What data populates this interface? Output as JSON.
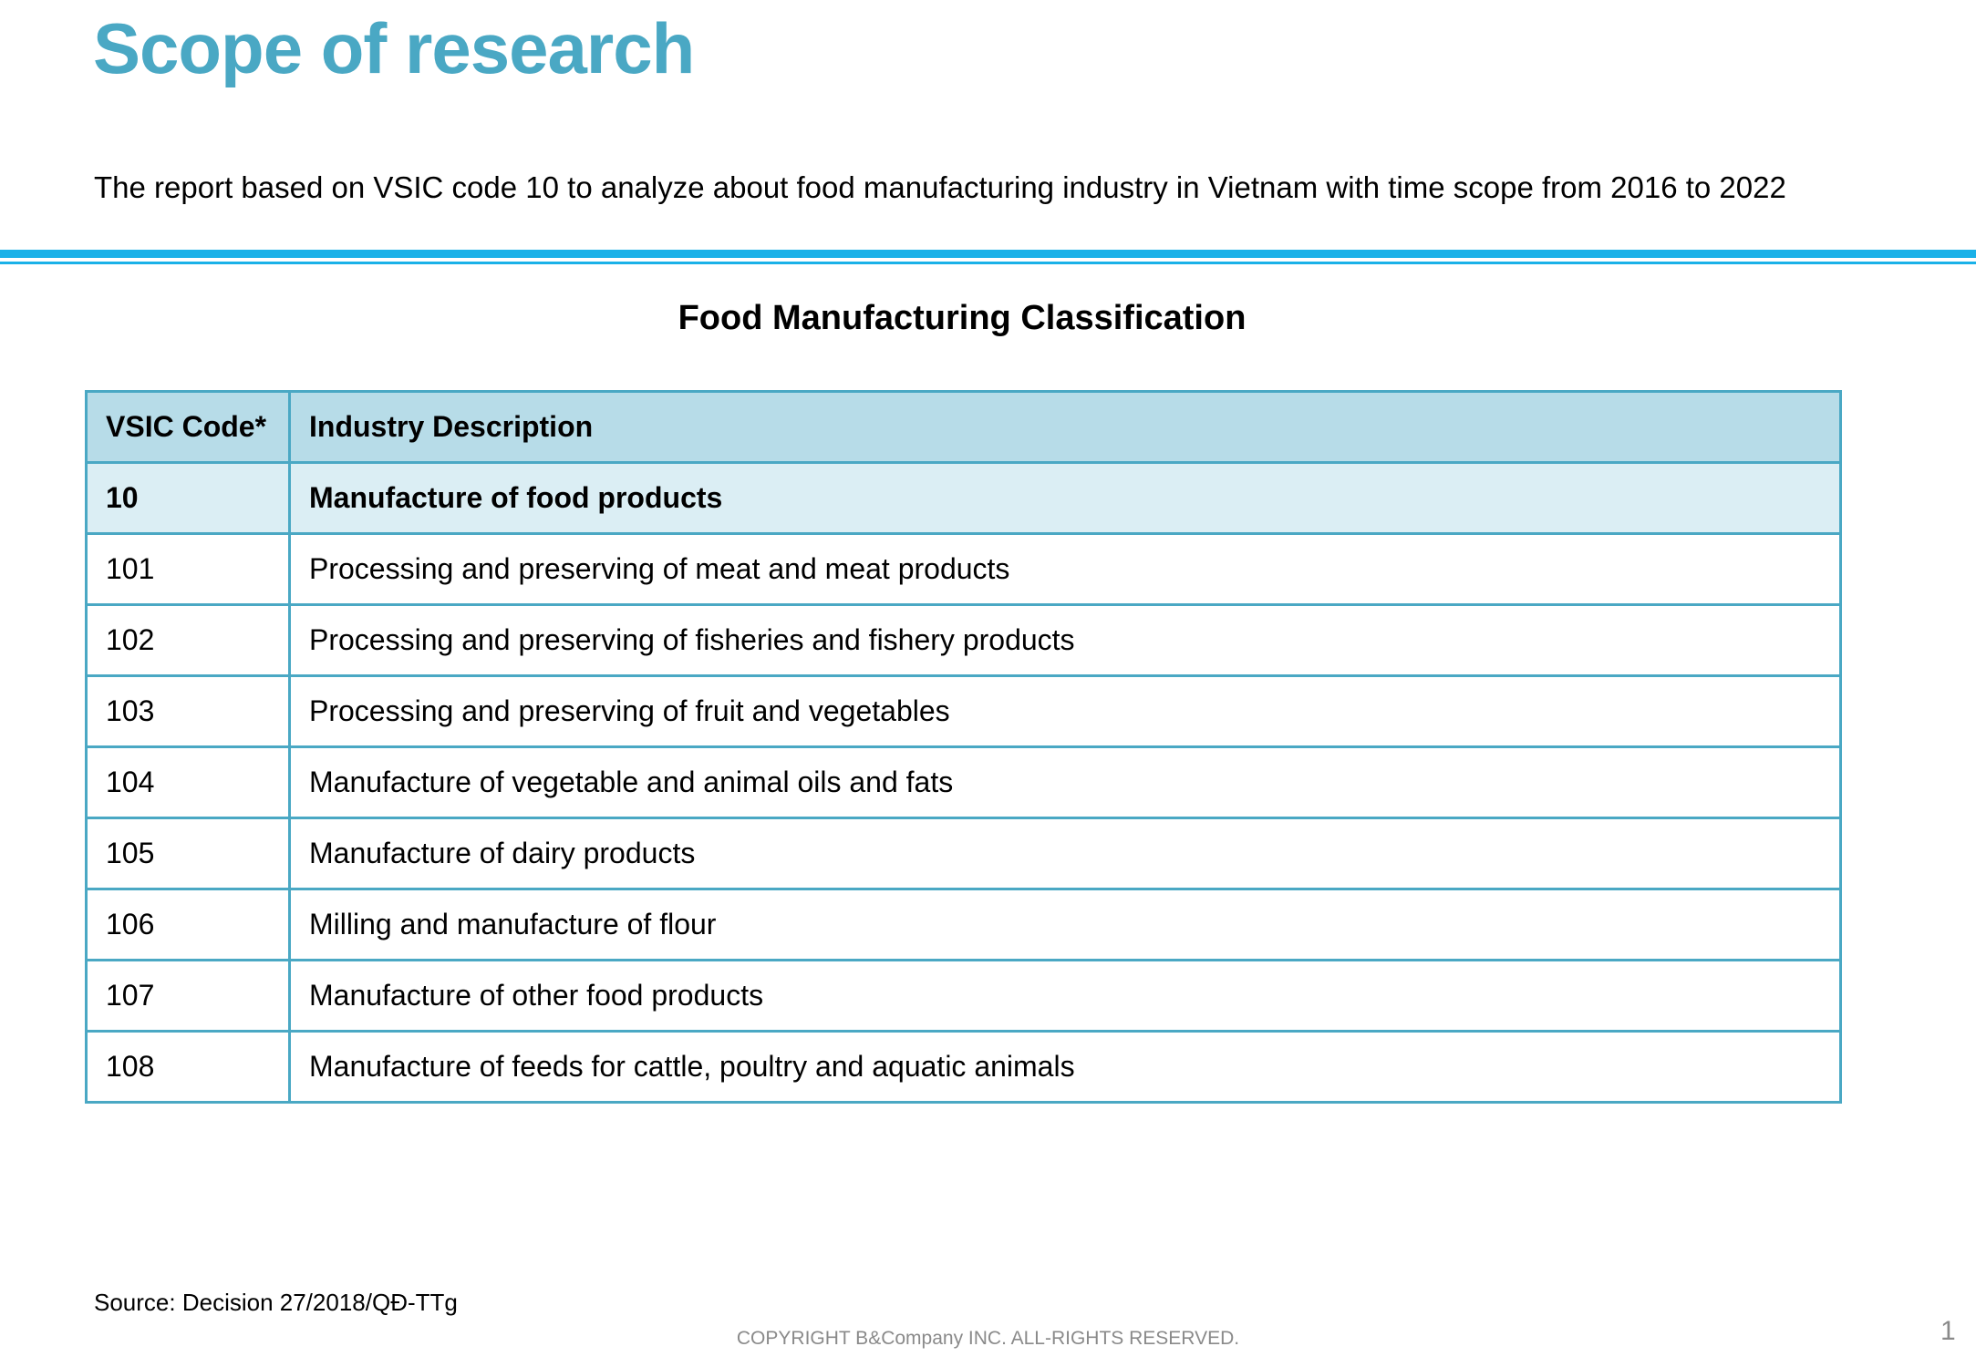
{
  "header": {
    "title": "Scope of research",
    "subtitle": "The report based on VSIC code 10 to analyze about food manufacturing industry in Vietnam with time scope from 2016 to 2022"
  },
  "table": {
    "title": "Food Manufacturing Classification",
    "columns": [
      "VSIC Code*",
      "Industry Description"
    ],
    "rows": [
      [
        "10",
        "Manufacture of food products"
      ],
      [
        "101",
        "Processing and preserving of meat and meat products"
      ],
      [
        "102",
        "Processing and preserving of fisheries and fishery products"
      ],
      [
        "103",
        "Processing and preserving of fruit and vegetables"
      ],
      [
        "104",
        "Manufacture of vegetable and animal oils and fats"
      ],
      [
        "105",
        "Manufacture of dairy products"
      ],
      [
        "106",
        "Milling and manufacture of flour"
      ],
      [
        "107",
        "Manufacture of other food products"
      ],
      [
        "108",
        "Manufacture of feeds for cattle, poultry and aquatic animals"
      ]
    ]
  },
  "footer": {
    "source": "Source: Decision 27/2018/QĐ-TTg",
    "copyright": "COPYRIGHT B&Company INC. ALL-RIGHTS RESERVED.",
    "page": "1"
  }
}
